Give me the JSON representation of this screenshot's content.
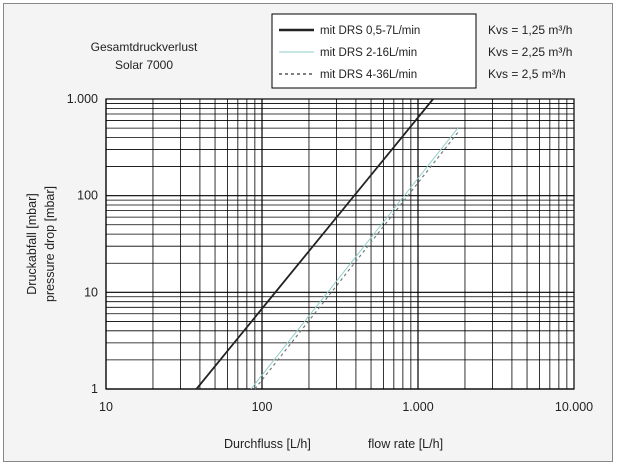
{
  "chart_data": {
    "type": "line",
    "title": "Gesamtdruckverlust",
    "subtitle": "Solar 7000",
    "xlabel": "Durchfluss  [L/h]",
    "xlabel_en": "flow rate [L/h]",
    "ylabel": "Druckabfall  [mbar]",
    "ylabel_en": "pressure drop  [mbar]",
    "x_scale": "log",
    "y_scale": "log",
    "xlim": [
      10,
      10000
    ],
    "ylim": [
      1,
      1000
    ],
    "x_ticks": [
      {
        "value": 10,
        "label": "10"
      },
      {
        "value": 100,
        "label": "100"
      },
      {
        "value": 1000,
        "label": "1.000"
      },
      {
        "value": 10000,
        "label": "10.000"
      }
    ],
    "y_ticks": [
      {
        "value": 1,
        "label": "1"
      },
      {
        "value": 10,
        "label": "10"
      },
      {
        "value": 100,
        "label": "100"
      },
      {
        "value": 1000,
        "label": "1.000"
      }
    ],
    "grid": true,
    "legend_position": "top",
    "series": [
      {
        "name": "mit DRS 0,5-7L/min",
        "kvs": "Kvs = 1,25 m³/h",
        "style": "solid",
        "color": "#222222",
        "x": [
          38,
          1250
        ],
        "y": [
          1,
          1000
        ]
      },
      {
        "name": "mit DRS 2-16L/min",
        "kvs": "Kvs = 2,25 m³/h",
        "style": "thin",
        "color": "#8fcfc8",
        "x": [
          85,
          1800
        ],
        "y": [
          1,
          500
        ]
      },
      {
        "name": "mit DRS 4-36L/min",
        "kvs": "Kvs = 2,5 m³/h",
        "style": "dashed",
        "color": "#7a7a7a",
        "x": [
          90,
          1800
        ],
        "y": [
          1,
          450
        ]
      }
    ]
  }
}
